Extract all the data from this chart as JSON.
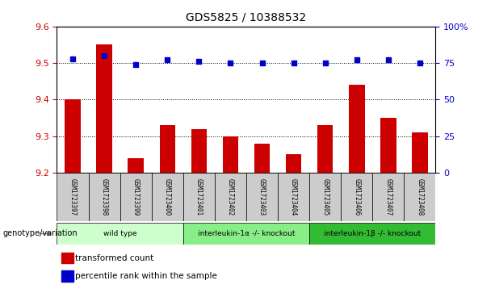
{
  "title": "GDS5825 / 10388532",
  "samples": [
    "GSM1723397",
    "GSM1723398",
    "GSM1723399",
    "GSM1723400",
    "GSM1723401",
    "GSM1723402",
    "GSM1723403",
    "GSM1723404",
    "GSM1723405",
    "GSM1723406",
    "GSM1723407",
    "GSM1723408"
  ],
  "bar_values": [
    9.4,
    9.55,
    9.24,
    9.33,
    9.32,
    9.3,
    9.28,
    9.25,
    9.33,
    9.44,
    9.35,
    9.31
  ],
  "dot_values": [
    78,
    80,
    74,
    77,
    76,
    75,
    75,
    75,
    75,
    77,
    77,
    75
  ],
  "bar_color": "#cc0000",
  "dot_color": "#0000cc",
  "ylim_left": [
    9.2,
    9.6
  ],
  "ylim_right": [
    0,
    100
  ],
  "yticks_left": [
    9.2,
    9.3,
    9.4,
    9.5,
    9.6
  ],
  "yticks_right": [
    0,
    25,
    50,
    75,
    100
  ],
  "ytick_labels_right": [
    "0",
    "25",
    "50",
    "75",
    "100%"
  ],
  "groups": [
    {
      "label": "wild type",
      "start": 0,
      "end": 3,
      "color": "#ccffcc"
    },
    {
      "label": "interleukin-1α -/- knockout",
      "start": 4,
      "end": 7,
      "color": "#88ee88"
    },
    {
      "label": "interleukin-1β -/- knockout",
      "start": 8,
      "end": 11,
      "color": "#33bb33"
    }
  ],
  "legend_bar_label": "transformed count",
  "legend_dot_label": "percentile rank within the sample",
  "genotype_label": "genotype/variation",
  "bar_bottom": 9.2,
  "sample_cell_color": "#cccccc",
  "arrow_color": "#888888"
}
